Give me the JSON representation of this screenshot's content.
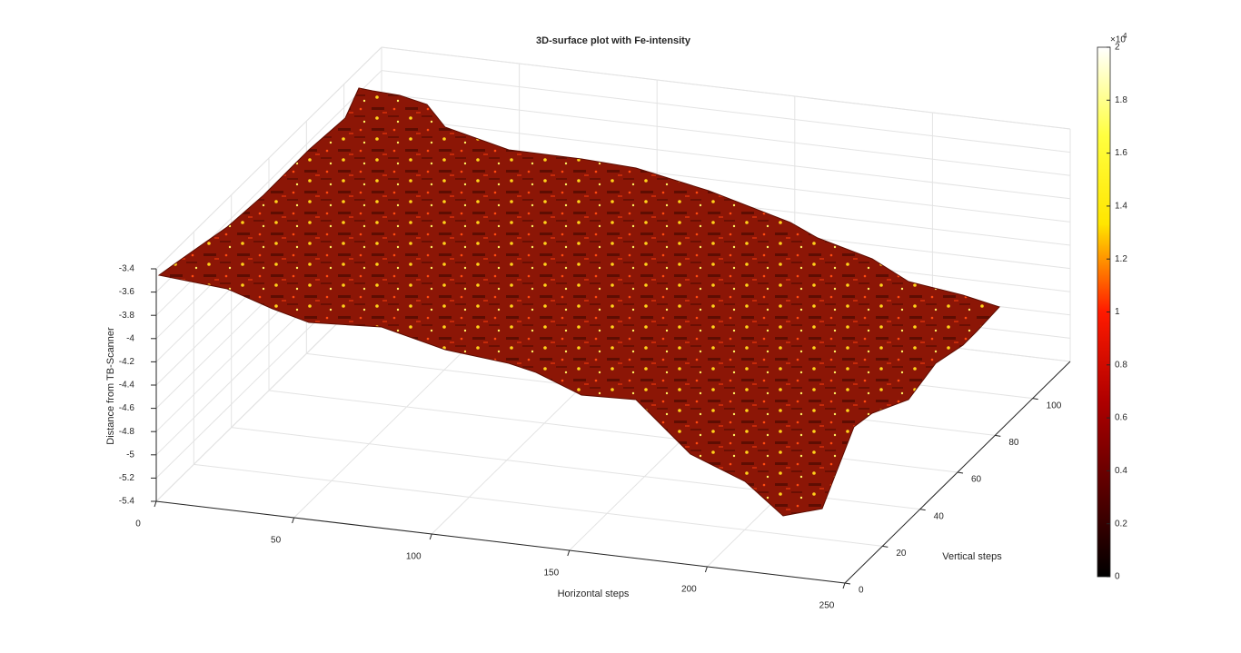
{
  "chart_data": {
    "type": "surface",
    "title": "3D-surface plot with Fe-intensity",
    "xlabel": "Horizontal steps",
    "ylabel": "Vertical steps",
    "zlabel": "Distance from TB-Scanner",
    "xlim": [
      0,
      250
    ],
    "xticks": [
      0,
      50,
      100,
      150,
      200,
      250
    ],
    "ylim": [
      0,
      120
    ],
    "yticks": [
      0,
      20,
      40,
      60,
      80,
      100
    ],
    "zlim": [
      -5.4,
      -3.4
    ],
    "zticks": [
      -5.4,
      -5.2,
      -5,
      -4.8,
      -4.6,
      -4.4,
      -4.2,
      -4,
      -3.8,
      -3.6,
      -3.4
    ],
    "grid": true,
    "colormap": [
      "#000000",
      "#5a0000",
      "#b00000",
      "#ff1a00",
      "#ffe600",
      "#ffff40",
      "#ffffff"
    ],
    "colorbar": {
      "lim": [
        0,
        20000
      ],
      "ticks": [
        {
          "value": 0,
          "label": "0"
        },
        {
          "value": 2000,
          "label": "0.2"
        },
        {
          "value": 4000,
          "label": "0.4"
        },
        {
          "value": 6000,
          "label": "0.6"
        },
        {
          "value": 8000,
          "label": "0.8"
        },
        {
          "value": 10000,
          "label": "1"
        },
        {
          "value": 12000,
          "label": "1.2"
        },
        {
          "value": 14000,
          "label": "1.4"
        },
        {
          "value": 16000,
          "label": "1.6"
        },
        {
          "value": 18000,
          "label": "1.8"
        },
        {
          "value": 20000,
          "label": "2"
        }
      ],
      "exponent_base": "×10",
      "exponent": "4"
    }
  }
}
